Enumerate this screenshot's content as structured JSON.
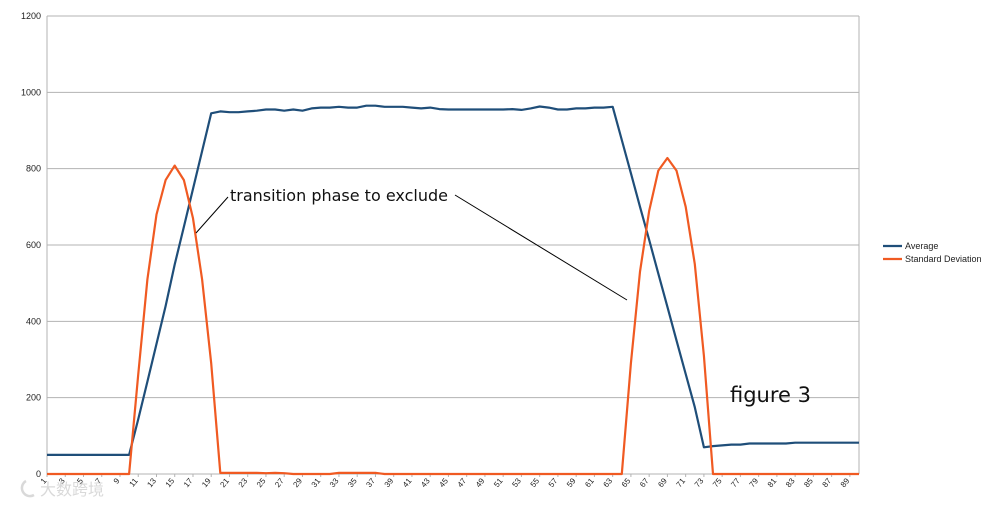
{
  "chart_data": {
    "type": "line",
    "title": "",
    "xlabel": "",
    "ylabel": "",
    "ylim": [
      0,
      1200
    ],
    "yticks": [
      0,
      200,
      400,
      600,
      800,
      1000,
      1200
    ],
    "xlim": [
      1,
      90
    ],
    "xtick_labels": [
      "1",
      "3",
      "5",
      "7",
      "9",
      "11",
      "13",
      "15",
      "17",
      "19",
      "21",
      "23",
      "25",
      "27",
      "29",
      "31",
      "33",
      "35",
      "37",
      "39",
      "41",
      "43",
      "45",
      "47",
      "49",
      "51",
      "53",
      "55",
      "57",
      "59",
      "61",
      "63",
      "65",
      "67",
      "69",
      "71",
      "73",
      "75",
      "77",
      "79",
      "81",
      "83",
      "85",
      "87",
      "89"
    ],
    "grid": true,
    "legend_position": "right",
    "series": [
      {
        "name": "Average",
        "color": "#1f4e79",
        "values": [
          50,
          50,
          50,
          50,
          50,
          50,
          50,
          50,
          50,
          50,
          143,
          242,
          341,
          440,
          549,
          648,
          747,
          846,
          945,
          950,
          948,
          948,
          950,
          952,
          955,
          955,
          952,
          955,
          952,
          958,
          960,
          960,
          962,
          960,
          960,
          965,
          965,
          962,
          962,
          962,
          960,
          958,
          960,
          956,
          955,
          955,
          955,
          955,
          955,
          955,
          955,
          956,
          954,
          958,
          963,
          960,
          955,
          955,
          958,
          958,
          960,
          960,
          962,
          875,
          788,
          700,
          613,
          525,
          438,
          350,
          262,
          175,
          70,
          73,
          75,
          77,
          77,
          80,
          80,
          80,
          80,
          80,
          82,
          82,
          82,
          82,
          82,
          82,
          82,
          82
        ]
      },
      {
        "name": "Standard Deviation",
        "color": "#f05a22",
        "values": [
          0,
          0,
          0,
          0,
          0,
          0,
          0,
          0,
          0,
          0,
          260,
          510,
          680,
          770,
          808,
          770,
          670,
          510,
          290,
          3,
          3,
          3,
          3,
          3,
          2,
          3,
          2,
          0,
          0,
          0,
          0,
          0,
          3,
          3,
          3,
          3,
          3,
          0,
          0,
          0,
          0,
          0,
          0,
          0,
          0,
          0,
          0,
          0,
          0,
          0,
          0,
          0,
          0,
          0,
          0,
          0,
          0,
          0,
          0,
          0,
          0,
          0,
          0,
          0,
          290,
          530,
          690,
          795,
          828,
          795,
          700,
          550,
          310,
          0,
          0,
          0,
          0,
          0,
          0,
          0,
          0,
          0,
          0,
          0,
          0,
          0,
          0,
          0,
          0,
          0
        ]
      }
    ],
    "annotations": [
      {
        "text": "transition phase to exclude",
        "x": 16,
        "y": 630
      },
      {
        "text": "figure 3",
        "x": 82,
        "y": 205
      }
    ]
  },
  "watermark": "大数跨境"
}
